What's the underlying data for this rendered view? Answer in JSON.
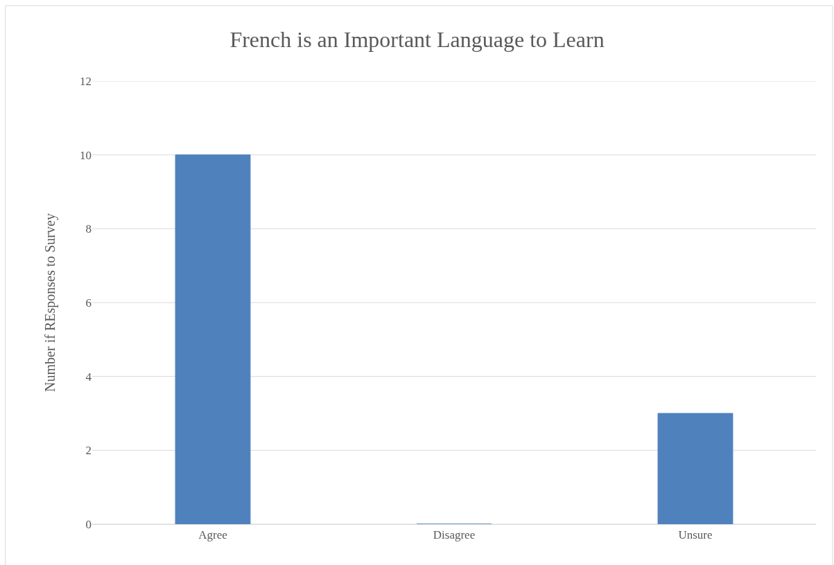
{
  "chart_data": {
    "type": "bar",
    "title": "French is an Important Language to Learn",
    "ylabel": "Number if REsponses to Survey",
    "categories": [
      "Agree",
      "Disagree",
      "Unsure"
    ],
    "values": [
      10,
      0,
      3
    ],
    "color": "#4f81bd",
    "ylim": [
      0,
      12
    ],
    "yticks": [
      0,
      2,
      4,
      6,
      8,
      10,
      12
    ],
    "grid": "y"
  }
}
